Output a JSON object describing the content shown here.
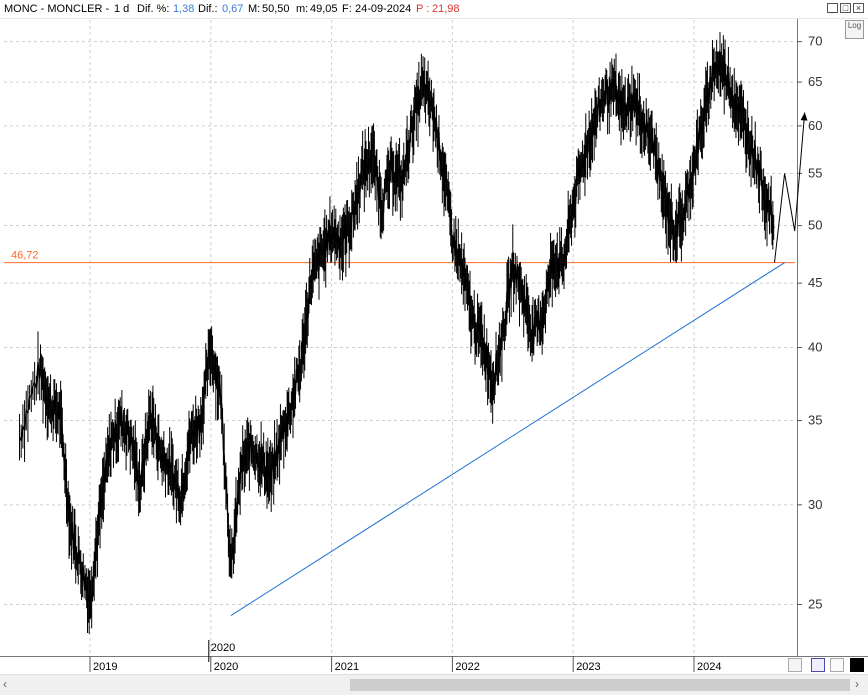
{
  "header": {
    "symbol": "MONC - MONCLER -",
    "period": "1 d",
    "dif_pct_label": "Dif. %:",
    "dif_pct_value": "1,38",
    "dif_label": "Dif.:",
    "dif_value": "0,67",
    "max_label": "M:",
    "max_value": "50,50",
    "min_label": "m:",
    "min_value": "49,05",
    "date_label": "F:",
    "date_value": "24-09-2024",
    "p_label": "P :",
    "p_value": "21,98"
  },
  "log_button": "Log",
  "colors": {
    "price": "#000000",
    "support_line": "#ff6a2a",
    "trend_line": "#1c6fd1",
    "blue_text": "#3a7bd5",
    "red_text": "#e03030",
    "grid": "#cfcfcf"
  },
  "chart_data": {
    "type": "line",
    "title": "",
    "xlabel": "",
    "ylabel": "",
    "yscale": "log",
    "ylim": [
      22.5,
      72.5
    ],
    "xlim": [
      "2018-06",
      "2024-11"
    ],
    "y_ticks": [
      25,
      30,
      35,
      40,
      45,
      50,
      55,
      60,
      65,
      70
    ],
    "x_ticks": [
      "2019",
      "2020",
      "2021",
      "2022",
      "2023",
      "2024"
    ],
    "x_marker_label": "2020",
    "grid": true,
    "series": [
      {
        "x": [
          "2018-06",
          "2018-08",
          "2018-09",
          "2018-10",
          "2018-11",
          "2018-12",
          "2019-01",
          "2019-02",
          "2019-03",
          "2019-04",
          "2019-05",
          "2019-06",
          "2019-07",
          "2019-08",
          "2019-09",
          "2019-10",
          "2019-11",
          "2019-12",
          "2020-01",
          "2020-02",
          "2020-03",
          "2020-04",
          "2020-05",
          "2020-06",
          "2020-07",
          "2020-08",
          "2020-09",
          "2020-10",
          "2020-11",
          "2020-12",
          "2021-01",
          "2021-02",
          "2021-03",
          "2021-04",
          "2021-05",
          "2021-06",
          "2021-07",
          "2021-08",
          "2021-09",
          "2021-10",
          "2021-11",
          "2021-12",
          "2022-01",
          "2022-02",
          "2022-03",
          "2022-04",
          "2022-05",
          "2022-06",
          "2022-07",
          "2022-08",
          "2022-09",
          "2022-10",
          "2022-11",
          "2022-12",
          "2023-01",
          "2023-02",
          "2023-03",
          "2023-04",
          "2023-05",
          "2023-06",
          "2023-07",
          "2023-08",
          "2023-09",
          "2023-10",
          "2023-11",
          "2023-12",
          "2024-01",
          "2024-02",
          "2024-03",
          "2024-04",
          "2024-05",
          "2024-06",
          "2024-07",
          "2024-08",
          "2024-09"
        ],
        "y": [
          34.0,
          38.5,
          36.0,
          35.5,
          29.0,
          27.0,
          25.2,
          29.5,
          33.5,
          35.0,
          34.0,
          31.0,
          35.5,
          33.0,
          32.0,
          30.5,
          34.0,
          35.0,
          40.0,
          36.5,
          26.5,
          32.0,
          33.5,
          32.5,
          31.5,
          34.0,
          36.0,
          39.0,
          45.5,
          47.5,
          49.5,
          48.5,
          50.5,
          55.0,
          57.0,
          52.0,
          55.5,
          54.0,
          60.0,
          64.5,
          62.0,
          56.0,
          49.0,
          46.0,
          42.0,
          40.5,
          37.5,
          41.0,
          46.5,
          44.0,
          41.0,
          42.5,
          47.0,
          46.5,
          52.0,
          56.5,
          60.0,
          63.5,
          64.0,
          61.5,
          63.0,
          60.0,
          58.0,
          52.5,
          49.5,
          51.0,
          56.0,
          61.0,
          67.0,
          66.5,
          63.0,
          60.0,
          57.0,
          53.0,
          49.8
        ]
      }
    ],
    "horizontal_line": {
      "value": 46.72,
      "label": "46,72"
    },
    "trend_line": {
      "from": [
        "2020-03",
        24.5
      ],
      "to": [
        "2024-09",
        46.72
      ]
    },
    "projection_path": {
      "x": [
        "2024-09",
        "2024-10",
        "2024-11",
        "2024-12"
      ],
      "y": [
        46.72,
        55.0,
        49.5,
        61.5
      ]
    }
  }
}
